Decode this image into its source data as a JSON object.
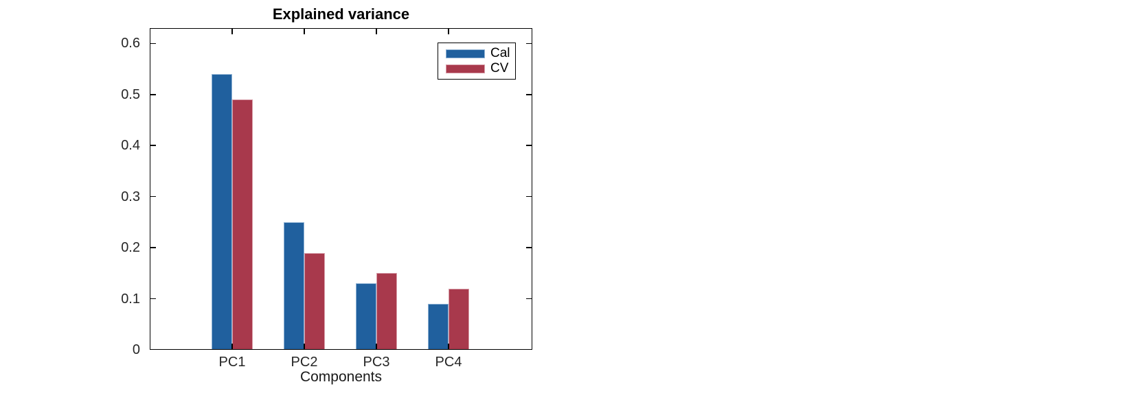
{
  "chart_data": {
    "type": "bar",
    "title": "Explained variance",
    "xlabel": "Components",
    "ylabel": "",
    "categories": [
      "PC1",
      "PC2",
      "PC3",
      "PC4"
    ],
    "series": [
      {
        "name": "Cal",
        "color": "#20609E",
        "edge_color": "#8FB2D4",
        "values": [
          0.54,
          0.25,
          0.13,
          0.09
        ]
      },
      {
        "name": "CV",
        "color": "#A8394C",
        "edge_color": "#D79DA8",
        "values": [
          0.49,
          0.19,
          0.15,
          0.12
        ]
      }
    ],
    "ylim": [
      0,
      0.63
    ],
    "yticks": [
      0,
      0.1,
      0.2,
      0.3,
      0.4,
      0.5,
      0.6
    ],
    "ytick_labels": [
      "0",
      "0.1",
      "0.2",
      "0.3",
      "0.4",
      "0.5",
      "0.6"
    ],
    "grid": false,
    "legend": {
      "position": "top-right",
      "entries": [
        "Cal",
        "CV"
      ]
    },
    "colors": {
      "axis": "#000000",
      "tick_label": "#262626",
      "background": "#ffffff"
    }
  }
}
